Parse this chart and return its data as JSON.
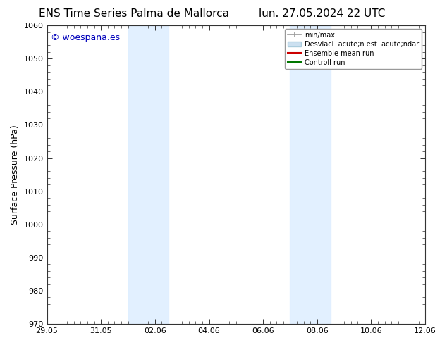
{
  "title_left": "ENS Time Series Palma de Mallorca",
  "title_right": "lun. 27.05.2024 22 UTC",
  "ylabel": "Surface Pressure (hPa)",
  "ylim": [
    970,
    1060
  ],
  "yticks": [
    970,
    980,
    990,
    1000,
    1010,
    1020,
    1030,
    1040,
    1050,
    1060
  ],
  "xtick_labels": [
    "29.05",
    "31.05",
    "02.06",
    "04.06",
    "06.06",
    "08.06",
    "10.06",
    "12.06"
  ],
  "x_tick_positions": [
    0,
    2,
    4,
    6,
    8,
    10,
    12,
    14
  ],
  "xlim": [
    0,
    14
  ],
  "bg_color": "#ffffff",
  "plot_bg_color": "#ffffff",
  "shaded_bands": [
    {
      "xmin": 3.0,
      "xmax": 4.5,
      "color": "#ddeeff",
      "alpha": 0.85
    },
    {
      "xmin": 9.0,
      "xmax": 10.5,
      "color": "#ddeeff",
      "alpha": 0.85
    }
  ],
  "watermark_text": "© woespana.es",
  "watermark_color": "#0000bb",
  "watermark_fontsize": 9,
  "legend_labels": [
    "min/max",
    "Desviaci acute;n est acute;ndar",
    "Ensemble mean run",
    "Controll run"
  ],
  "legend_colors_line": [
    "#aaaaaa",
    "#ccddee",
    "#dd0000",
    "#006600"
  ],
  "title_fontsize": 11,
  "axis_label_fontsize": 9,
  "tick_fontsize": 8,
  "grid_color": "#dddddd",
  "spine_color": "#333333"
}
